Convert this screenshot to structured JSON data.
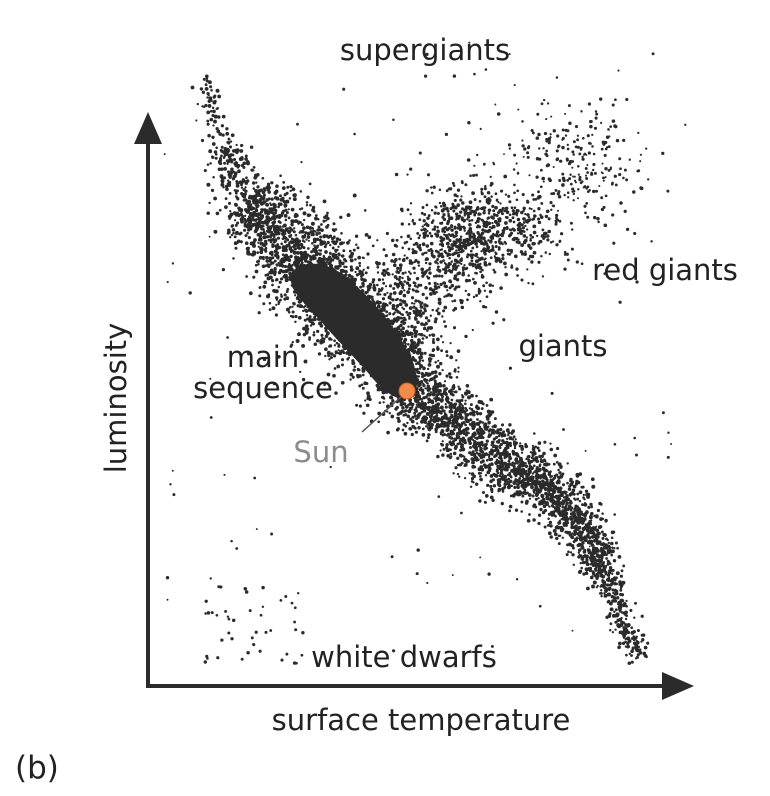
{
  "diagram": {
    "panel_label": "(b)",
    "x_axis_label": "surface temperature",
    "y_axis_label": "luminosity",
    "regions": {
      "supergiants": "supergiants",
      "red_giants": "red giants",
      "giants": "giants",
      "main_sequence_line1": "main",
      "main_sequence_line2": "sequence",
      "white_dwarfs": "white dwarfs",
      "sun": "Sun"
    },
    "colors": {
      "stars": "#2b2b2b",
      "axes": "#2b2b2b",
      "sun": "#f28a4a",
      "sun_label": "#8c8c8c"
    }
  }
}
